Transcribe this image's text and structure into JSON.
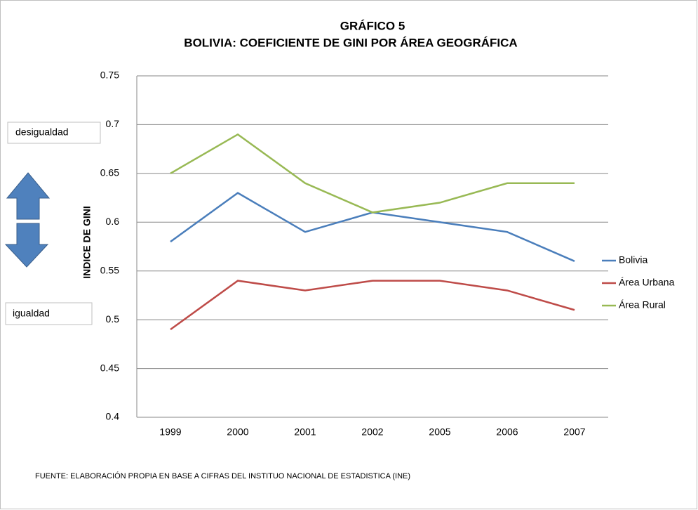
{
  "chart_data": {
    "type": "line",
    "title": "GRÁFICO 5",
    "subtitle": "BOLIVIA: COEFICIENTE DE GINI POR ÁREA GEOGRÁFICA",
    "y_label": "INDICE DE GINI",
    "categories": [
      "1999",
      "2000",
      "2001",
      "2002",
      "2005",
      "2006",
      "2007"
    ],
    "series": [
      {
        "name": "Bolivia",
        "color": "#4a7ebb",
        "values": [
          0.58,
          0.63,
          0.59,
          0.61,
          0.6,
          0.59,
          0.56
        ]
      },
      {
        "name": "Área Urbana",
        "color": "#be4b48",
        "values": [
          0.49,
          0.54,
          0.53,
          0.54,
          0.54,
          0.53,
          0.51
        ]
      },
      {
        "name": "Área Rural",
        "color": "#98b954",
        "values": [
          0.65,
          0.69,
          0.64,
          0.61,
          0.62,
          0.64,
          0.64
        ]
      }
    ],
    "ylim": [
      0.4,
      0.75
    ],
    "yticks": [
      0.4,
      0.45,
      0.5,
      0.55,
      0.6,
      0.65,
      0.7,
      0.75
    ],
    "grid": true,
    "legend": "right",
    "annotations": [
      "desigualdad",
      "igualdad"
    ],
    "source": "FUENTE: ELABORACIÓN PROPIA EN BASE A CIFRAS DEL INSTITUO NACIONAL DE ESTADISTICA (INE)"
  }
}
